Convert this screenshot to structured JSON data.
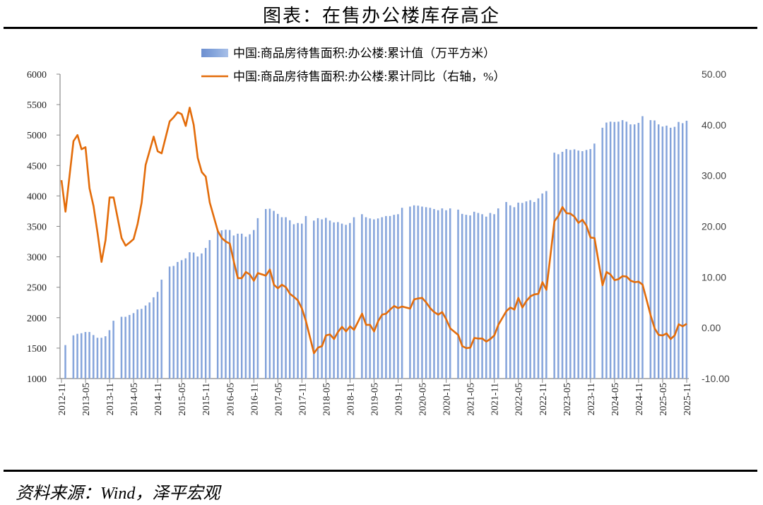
{
  "title": "图表：在售办公楼库存高企",
  "source": "资料来源：Wind，泽平宏观",
  "colors": {
    "bar": "#86a6dc",
    "line": "#e36c0a"
  },
  "chart_data": {
    "type": "bar+line",
    "x_range": [
      "2012-11",
      "2025-11"
    ],
    "frequency": "monthly",
    "x_tick_labels": [
      "2012-11",
      "2013-05",
      "2013-11",
      "2014-05",
      "2014-11",
      "2015-05",
      "2015-11",
      "2016-05",
      "2016-11",
      "2017-05",
      "2017-11",
      "2018-05",
      "2018-11",
      "2019-05",
      "2019-11",
      "2020-05",
      "2020-11",
      "2021-05",
      "2021-11",
      "2022-05",
      "2022-11",
      "2023-05",
      "2023-11",
      "2024-05",
      "2024-11",
      "2025-05",
      "2025-11"
    ],
    "y_left": {
      "range": [
        1000,
        6000
      ],
      "ticks": [
        "1000",
        "1500",
        "2000",
        "2500",
        "3000",
        "3500",
        "4000",
        "4500",
        "5000",
        "5500",
        "6000"
      ]
    },
    "y_right": {
      "range": [
        -10,
        50
      ],
      "ticks": [
        "-10.00",
        "0.00",
        "10.00",
        "20.00",
        "30.00",
        "40.00",
        "50.00"
      ]
    },
    "legend_placement": "top-center",
    "grid": false,
    "series": [
      {
        "name": "中国:商品房待售面积:办公楼:累计值（万平方米）",
        "type": "bar",
        "axis": "left",
        "values": [
          null,
          1550,
          null,
          1710,
          1735,
          1745,
          1765,
          1765,
          1715,
          1670,
          1670,
          1695,
          1795,
          1950,
          null,
          2015,
          2015,
          2045,
          2075,
          2135,
          2145,
          2200,
          2250,
          2335,
          2425,
          2625,
          null,
          2840,
          2850,
          2915,
          2945,
          2975,
          3075,
          3070,
          3005,
          3055,
          3145,
          3275,
          null,
          3440,
          3435,
          3445,
          3440,
          3350,
          3380,
          3380,
          3330,
          3370,
          3440,
          3635,
          null,
          3785,
          3790,
          3755,
          3705,
          3650,
          3650,
          3600,
          3535,
          3555,
          3545,
          3670,
          null,
          3595,
          3635,
          3615,
          3640,
          3595,
          3565,
          3570,
          3545,
          3525,
          3555,
          3650,
          null,
          3700,
          3650,
          3630,
          3615,
          3630,
          3650,
          3670,
          3670,
          3690,
          3700,
          3805,
          null,
          3825,
          3845,
          3840,
          3825,
          3815,
          3805,
          3785,
          3765,
          3795,
          3765,
          3795,
          null,
          3775,
          3705,
          3690,
          3680,
          3740,
          3720,
          3700,
          3660,
          3720,
          3700,
          3795,
          null,
          3900,
          3845,
          3815,
          3890,
          3885,
          3910,
          3930,
          3900,
          3960,
          4040,
          4080,
          null,
          4710,
          4685,
          4725,
          4770,
          4755,
          4765,
          4745,
          4735,
          4755,
          4770,
          4860,
          null,
          5120,
          5205,
          5220,
          5215,
          5220,
          5245,
          5220,
          5175,
          5175,
          5200,
          5310,
          null,
          5245,
          5240,
          5175,
          5140,
          5155,
          5120,
          5135,
          5215,
          5195,
          5235
        ]
      },
      {
        "name": "中国:商品房待售面积:办公楼:累计同比（右轴，%）",
        "type": "line",
        "axis": "right",
        "values": [
          29.1,
          22.9,
          null,
          36.8,
          38.0,
          35.2,
          35.6,
          27.5,
          24.0,
          18.7,
          13.0,
          17.3,
          25.7,
          25.7,
          null,
          17.7,
          16.2,
          16.8,
          17.5,
          20.5,
          24.7,
          32.1,
          34.9,
          37.7,
          34.8,
          34.4,
          null,
          40.7,
          41.5,
          42.5,
          42.1,
          39.8,
          43.4,
          40.0,
          33.5,
          30.7,
          29.8,
          24.7,
          null,
          19.1,
          17.7,
          17.0,
          16.6,
          13.1,
          9.8,
          9.8,
          11.0,
          10.5,
          9.3,
          10.8,
          null,
          10.3,
          11.5,
          8.5,
          7.8,
          8.5,
          8.0,
          6.7,
          6.1,
          5.4,
          3.8,
          1.3,
          null,
          -5.0,
          -3.9,
          -3.6,
          -1.5,
          -1.3,
          -2.2,
          -0.8,
          0.2,
          -0.7,
          0.3,
          -0.4,
          null,
          2.8,
          0.6,
          0.6,
          -0.7,
          1.3,
          2.6,
          2.8,
          3.6,
          4.3,
          3.9,
          4.2,
          null,
          3.8,
          5.6,
          5.8,
          5.9,
          5.0,
          3.9,
          3.1,
          2.6,
          3.1,
          1.7,
          -0.1,
          null,
          -1.4,
          -3.6,
          -4.0,
          -3.9,
          -2.0,
          -2.1,
          -2.1,
          -2.7,
          -2.2,
          -1.5,
          0.6,
          null,
          3.3,
          4.0,
          3.6,
          5.9,
          4.0,
          5.3,
          6.2,
          6.6,
          6.7,
          9.0,
          7.5,
          null,
          21.0,
          22.1,
          23.8,
          22.6,
          22.5,
          21.9,
          20.7,
          21.3,
          20.1,
          17.8,
          17.7,
          null,
          8.4,
          11.0,
          10.5,
          9.4,
          9.6,
          10.2,
          10.1,
          9.3,
          9.0,
          9.1,
          8.5,
          null,
          2.5,
          -0.1,
          -1.4,
          -1.5,
          -1.1,
          -2.2,
          -1.5,
          0.7,
          0.3,
          0.8
        ]
      }
    ]
  }
}
